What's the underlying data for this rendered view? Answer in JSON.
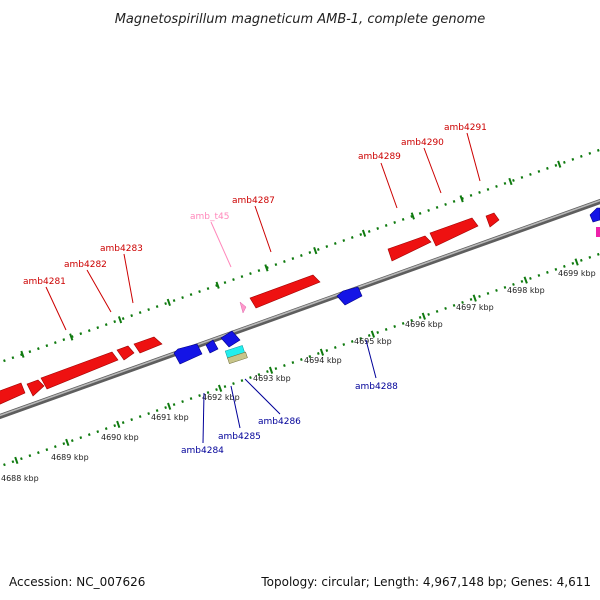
{
  "title": "Magnetospirillum magneticum AMB-1, complete genome",
  "footer": {
    "accession": "Accession: NC_007626",
    "summary": "Topology: circular; Length: 4,967,148 bp; Genes: 4,611"
  },
  "colors": {
    "forward_gene": "#ee1111",
    "reverse_gene": "#1414e6",
    "trna": "#ff99cc",
    "forward_label": "#cc0000",
    "reverse_label": "#000099",
    "trna_label": "#ff88bb",
    "backbone": "#8f8f8f",
    "tick": "#0f7a0f"
  },
  "scale_ticks": [
    "4688 kbp",
    "4689 kbp",
    "4690 kbp",
    "4691 kbp",
    "4692 kbp",
    "4693 kbp",
    "4694 kbp",
    "4695 kbp",
    "4696 kbp",
    "4697 kbp",
    "4698 kbp",
    "4699 kbp"
  ],
  "forward_gene_labels": [
    "amb4281",
    "amb4282",
    "amb4283",
    "amb4287",
    "amb4289",
    "amb4290",
    "amb4291"
  ],
  "trna_label": "amb_t45",
  "reverse_gene_labels": [
    "amb4284",
    "amb4285",
    "amb4286",
    "amb4288"
  ]
}
